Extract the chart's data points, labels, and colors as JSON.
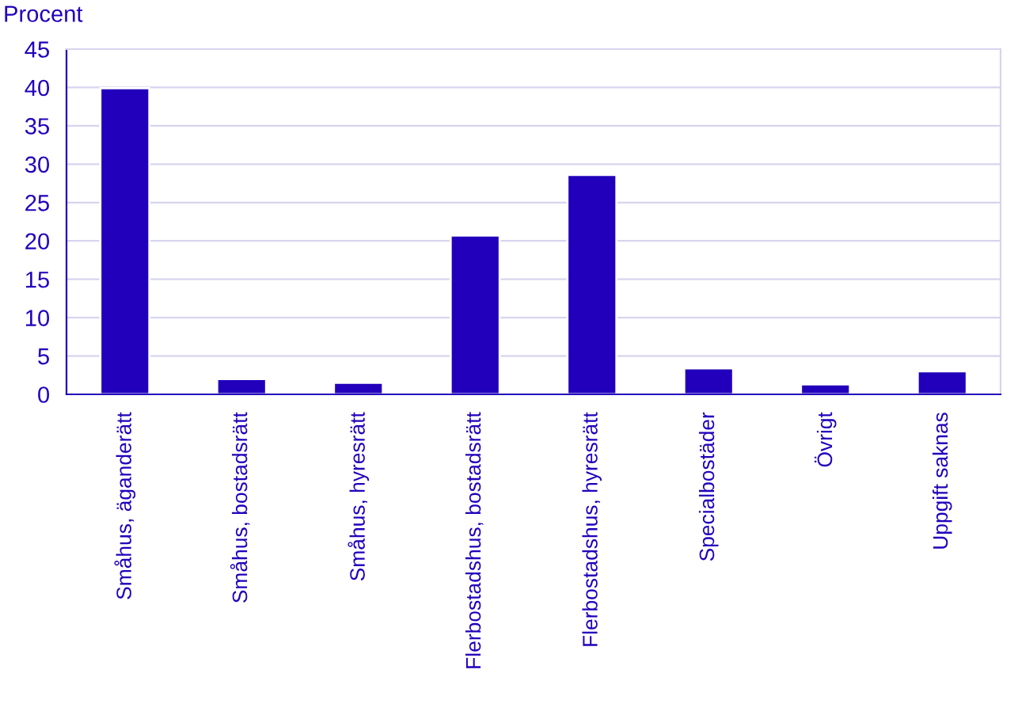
{
  "chart_data": {
    "type": "bar",
    "ylabel": "Procent",
    "categories": [
      "Småhus, äganderätt",
      "Småhus, bostadsrätt",
      "Småhus, hyresrätt",
      "Flerbostadshus, bostadsrätt",
      "Flerbostadshus, hyresrätt",
      "Specialbostäder",
      "Övrigt",
      "Uppgift saknas"
    ],
    "values": [
      39.9,
      2.0,
      1.5,
      20.7,
      28.6,
      3.4,
      1.3,
      3.0
    ],
    "color": "#2200bb",
    "ylim": [
      0,
      45
    ],
    "yticks": [
      0,
      5,
      10,
      15,
      20,
      25,
      30,
      35,
      40,
      45
    ],
    "grid": "y"
  }
}
